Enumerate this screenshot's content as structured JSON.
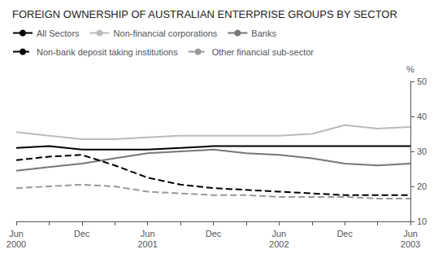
{
  "chart_data": {
    "type": "line",
    "title": "FOREIGN OWNERSHIP OF AUSTRALIAN ENTERPRISE GROUPS BY SECTOR",
    "y_label": "%",
    "categories": [
      "Jun\n2000",
      null,
      "Dec",
      null,
      "Jun\n2001",
      null,
      "Dec",
      null,
      "Jun\n2002",
      null,
      "Dec",
      null,
      "Jun\n2003"
    ],
    "series": [
      {
        "name": "All Sectors",
        "color": "#000000",
        "line_style": "solid",
        "values": [
          31.0,
          31.5,
          30.5,
          30.5,
          30.5,
          31.0,
          31.5,
          31.5,
          31.5,
          31.5,
          31.5,
          31.5,
          31.5
        ]
      },
      {
        "name": "Non-financial corporations",
        "color": "#bbbbbb",
        "line_style": "solid",
        "values": [
          35.5,
          34.5,
          33.5,
          33.5,
          34.0,
          34.5,
          34.5,
          34.5,
          34.5,
          35.0,
          37.5,
          36.5,
          37.0
        ]
      },
      {
        "name": "Banks",
        "color": "#777777",
        "line_style": "solid",
        "values": [
          24.5,
          25.5,
          26.5,
          28.0,
          29.5,
          30.0,
          30.5,
          29.5,
          29.0,
          28.0,
          26.5,
          26.0,
          26.5
        ]
      },
      {
        "name": "Non-bank deposit taking institutions",
        "color": "#000000",
        "line_style": "dashed",
        "values": [
          27.5,
          28.5,
          29.0,
          26.0,
          22.5,
          20.5,
          19.5,
          19.0,
          18.5,
          18.0,
          17.5,
          17.5,
          17.5
        ]
      },
      {
        "name": "Other financial sub-sector",
        "color": "#999999",
        "line_style": "dashed",
        "values": [
          19.5,
          20.0,
          20.5,
          20.0,
          18.5,
          18.0,
          17.5,
          17.5,
          17.0,
          17.0,
          17.0,
          16.5,
          16.5
        ]
      }
    ],
    "ylim": [
      10,
      50
    ],
    "yticks": [
      10,
      20,
      30,
      40,
      50
    ],
    "grid": false,
    "legend": "upper left"
  }
}
